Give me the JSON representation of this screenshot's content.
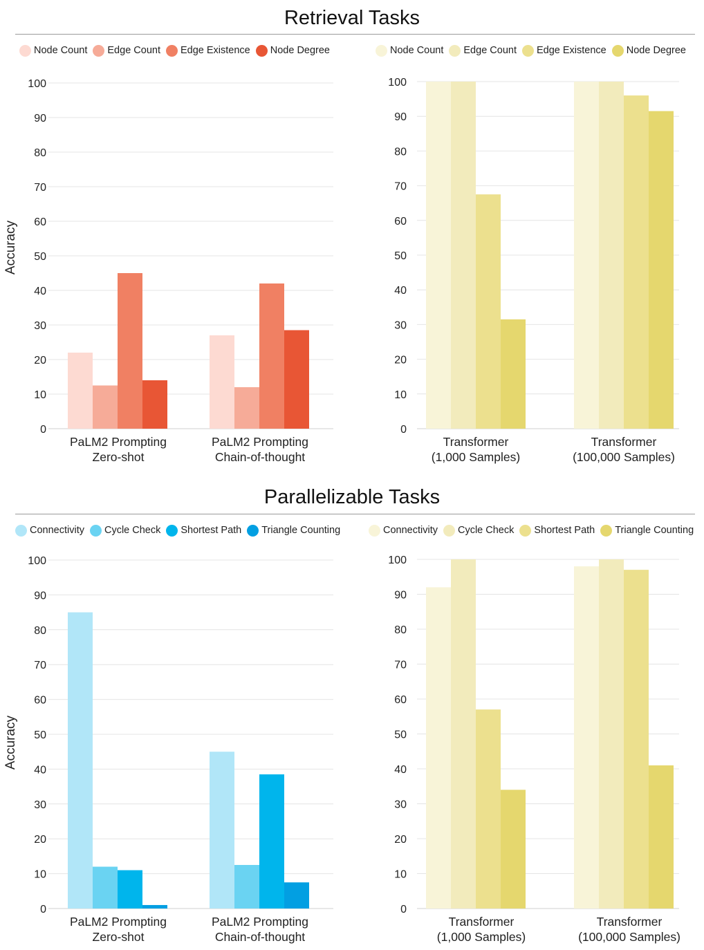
{
  "sections": [
    {
      "title": "Retrieval Tasks",
      "left_legend": [
        {
          "label": "Node Count",
          "color": "#fddad2"
        },
        {
          "label": "Edge Count",
          "color": "#f6ab98"
        },
        {
          "label": "Edge Existence",
          "color": "#f08063"
        },
        {
          "label": "Node Degree",
          "color": "#e85635"
        }
      ],
      "right_legend": [
        {
          "label": "Node Count",
          "color": "#f8f4d8"
        },
        {
          "label": "Edge Count",
          "color": "#f2ebbc"
        },
        {
          "label": "Edge Existence",
          "color": "#ece08e"
        },
        {
          "label": "Node Degree",
          "color": "#e5d76e"
        }
      ]
    },
    {
      "title": "Parallelizable Tasks",
      "left_legend": [
        {
          "label": "Connectivity",
          "color": "#b1e6f8"
        },
        {
          "label": "Cycle Check",
          "color": "#6ad3f2"
        },
        {
          "label": "Shortest Path",
          "color": "#00b5ec"
        },
        {
          "label": "Triangle Counting",
          "color": "#029fe2"
        }
      ],
      "right_legend": [
        {
          "label": "Connectivity",
          "color": "#f8f4d8"
        },
        {
          "label": "Cycle Check",
          "color": "#f2ebbc"
        },
        {
          "label": "Shortest Path",
          "color": "#ece08e"
        },
        {
          "label": "Triangle Counting",
          "color": "#e5d76e"
        }
      ]
    }
  ],
  "chart_data": [
    {
      "type": "bar",
      "section": "Retrieval Tasks",
      "ylabel": "Accuracy",
      "ylim": [
        0,
        100
      ],
      "yticks": [
        0,
        10,
        20,
        30,
        40,
        50,
        60,
        70,
        80,
        90,
        100
      ],
      "categories": [
        [
          "PaLM2 Prompting",
          "Zero-shot"
        ],
        [
          "PaLM2 Prompting",
          "Chain-of-thought"
        ]
      ],
      "series": [
        {
          "name": "Node Count",
          "color": "#fddad2",
          "values": [
            22,
            27
          ]
        },
        {
          "name": "Edge Count",
          "color": "#f6ab98",
          "values": [
            12.5,
            12
          ]
        },
        {
          "name": "Edge Existence",
          "color": "#f08063",
          "values": [
            45,
            42
          ]
        },
        {
          "name": "Node Degree",
          "color": "#e85635",
          "values": [
            14,
            28.5
          ]
        }
      ]
    },
    {
      "type": "bar",
      "section": "Retrieval Tasks",
      "ylabel": "",
      "ylim": [
        0,
        100
      ],
      "yticks": [
        0,
        10,
        20,
        30,
        40,
        50,
        60,
        70,
        80,
        90,
        100
      ],
      "categories": [
        [
          "Transformer",
          "(1,000 Samples)"
        ],
        [
          "Transformer",
          "(100,000 Samples)"
        ]
      ],
      "series": [
        {
          "name": "Node Count",
          "color": "#f8f4d8",
          "values": [
            100,
            100
          ]
        },
        {
          "name": "Edge Count",
          "color": "#f2ebbc",
          "values": [
            100,
            100
          ]
        },
        {
          "name": "Edge Existence",
          "color": "#ece08e",
          "values": [
            67.5,
            96
          ]
        },
        {
          "name": "Node Degree",
          "color": "#e5d76e",
          "values": [
            31.5,
            91.5
          ]
        }
      ]
    },
    {
      "type": "bar",
      "section": "Parallelizable Tasks",
      "ylabel": "Accuracy",
      "ylim": [
        0,
        100
      ],
      "yticks": [
        0,
        10,
        20,
        30,
        40,
        50,
        60,
        70,
        80,
        90,
        100
      ],
      "categories": [
        [
          "PaLM2 Prompting",
          "Zero-shot"
        ],
        [
          "PaLM2 Prompting",
          "Chain-of-thought"
        ]
      ],
      "series": [
        {
          "name": "Connectivity",
          "color": "#b1e6f8",
          "values": [
            85,
            45
          ]
        },
        {
          "name": "Cycle Check",
          "color": "#6ad3f2",
          "values": [
            12,
            12.5
          ]
        },
        {
          "name": "Shortest Path",
          "color": "#00b5ec",
          "values": [
            11,
            38.5
          ]
        },
        {
          "name": "Triangle Counting",
          "color": "#029fe2",
          "values": [
            1,
            7.5
          ]
        }
      ]
    },
    {
      "type": "bar",
      "section": "Parallelizable Tasks",
      "ylabel": "",
      "ylim": [
        0,
        100
      ],
      "yticks": [
        0,
        10,
        20,
        30,
        40,
        50,
        60,
        70,
        80,
        90,
        100
      ],
      "categories": [
        [
          "Transformer",
          "(1,000 Samples)"
        ],
        [
          "Transformer",
          "(100,000 Samples)"
        ]
      ],
      "series": [
        {
          "name": "Connectivity",
          "color": "#f8f4d8",
          "values": [
            92,
            98
          ]
        },
        {
          "name": "Cycle Check",
          "color": "#f2ebbc",
          "values": [
            100,
            100
          ]
        },
        {
          "name": "Shortest Path",
          "color": "#ece08e",
          "values": [
            57,
            97
          ]
        },
        {
          "name": "Triangle Counting",
          "color": "#e5d76e",
          "values": [
            34,
            41
          ]
        }
      ]
    }
  ]
}
